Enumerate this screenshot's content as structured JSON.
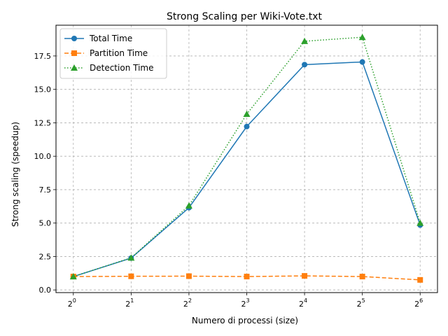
{
  "chart_data": {
    "type": "line",
    "title": "Strong Scaling per Wiki-Vote.txt",
    "xlabel": "Numero di processi (size)",
    "ylabel": "Strong scaling (speedup)",
    "x_scale": "log2",
    "x": [
      1,
      2,
      4,
      8,
      16,
      32,
      64
    ],
    "x_tick_base": "2",
    "x_tick_exponents": [
      "0",
      "1",
      "2",
      "3",
      "4",
      "5",
      "6"
    ],
    "ylim": [
      -0.2,
      19.8
    ],
    "y_ticks": [
      0.0,
      2.5,
      5.0,
      7.5,
      10.0,
      12.5,
      15.0,
      17.5
    ],
    "y_tick_labels": [
      "0.0",
      "2.5",
      "5.0",
      "7.5",
      "10.0",
      "12.5",
      "15.0",
      "17.5"
    ],
    "grid": true,
    "legend_position": "top-left",
    "series": [
      {
        "name": "Total Time",
        "color": "#1f77b4",
        "marker": "circle",
        "linestyle": "solid",
        "values": [
          1.0,
          2.38,
          6.15,
          12.22,
          16.85,
          17.05,
          4.85
        ]
      },
      {
        "name": "Partition Time",
        "color": "#ff7f0e",
        "marker": "square",
        "linestyle": "dashed",
        "values": [
          1.0,
          1.02,
          1.03,
          1.0,
          1.05,
          1.0,
          0.75
        ]
      },
      {
        "name": "Detection Time",
        "color": "#2ca02c",
        "marker": "triangle",
        "linestyle": "dotted",
        "values": [
          1.0,
          2.4,
          6.3,
          13.15,
          18.6,
          18.9,
          5.0
        ]
      }
    ]
  }
}
